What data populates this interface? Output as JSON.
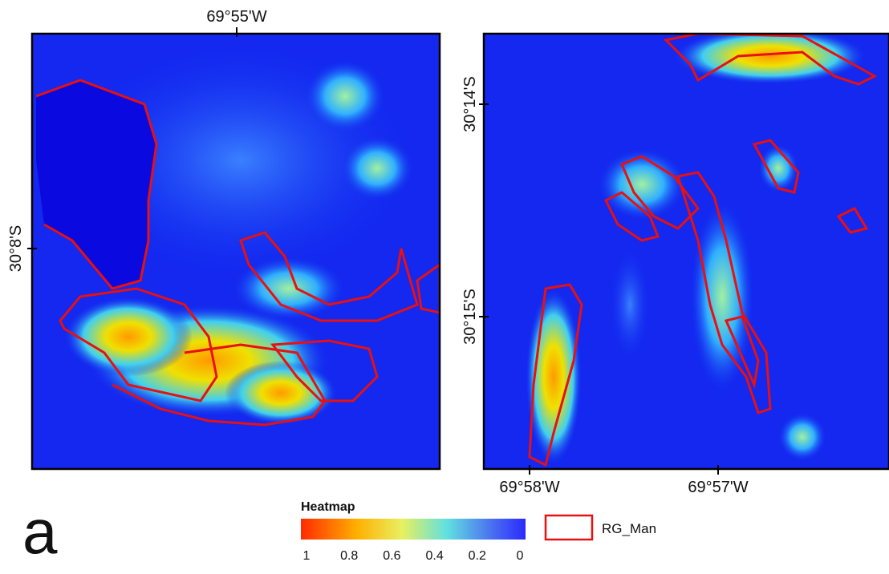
{
  "panels": [
    {
      "top_label": "69°55'W",
      "left_labels": [
        "30°8'S"
      ]
    },
    {
      "left_labels": [
        "30°14'S",
        "30°15'S"
      ],
      "bottom_labels": [
        "69°58'W",
        "69°57'W"
      ]
    }
  ],
  "legend": {
    "title": "Heatmap",
    "colorbar": {
      "range": [
        1,
        0
      ],
      "ticks": [
        1,
        0.8,
        0.6,
        0.4,
        0.2,
        0
      ]
    },
    "outline_label": "RG_Man"
  },
  "panel_letter": "a"
}
